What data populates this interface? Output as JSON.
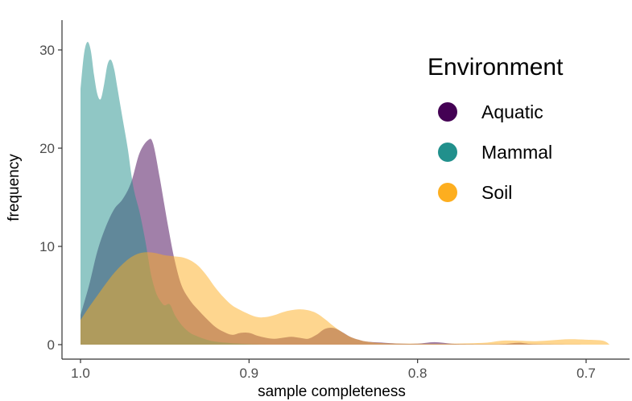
{
  "chart_data": {
    "type": "area",
    "xlabel": "sample completeness",
    "ylabel": "frequency",
    "x_reversed": true,
    "xlim": [
      1.0,
      0.685
    ],
    "ylim": [
      0,
      32
    ],
    "x_ticks": [
      1.0,
      0.9,
      0.8,
      0.7
    ],
    "x_tick_labels": [
      "1.0",
      "0.9",
      "0.8",
      "0.7"
    ],
    "y_ticks": [
      0,
      10,
      20,
      30
    ],
    "y_tick_labels": [
      "0",
      "10",
      "20",
      "30"
    ],
    "grid": false,
    "legend": {
      "title": "Environment",
      "position": "top-right",
      "entries": [
        "Aquatic",
        "Mammal",
        "Soil"
      ]
    },
    "series": [
      {
        "name": "Aquatic",
        "color": "#440154",
        "points": [
          [
            1.0,
            3.0
          ],
          [
            0.995,
            6.0
          ],
          [
            0.99,
            9.5
          ],
          [
            0.985,
            12.0
          ],
          [
            0.98,
            13.8
          ],
          [
            0.975,
            14.8
          ],
          [
            0.97,
            16.5
          ],
          [
            0.965,
            19.5
          ],
          [
            0.96,
            20.8
          ],
          [
            0.957,
            20.5
          ],
          [
            0.953,
            17.0
          ],
          [
            0.948,
            12.0
          ],
          [
            0.944,
            8.5
          ],
          [
            0.94,
            6.0
          ],
          [
            0.935,
            4.5
          ],
          [
            0.93,
            3.5
          ],
          [
            0.925,
            2.6
          ],
          [
            0.92,
            1.8
          ],
          [
            0.915,
            1.3
          ],
          [
            0.91,
            1.0
          ],
          [
            0.905,
            1.2
          ],
          [
            0.9,
            1.2
          ],
          [
            0.895,
            0.9
          ],
          [
            0.89,
            0.7
          ],
          [
            0.885,
            0.6
          ],
          [
            0.88,
            0.7
          ],
          [
            0.875,
            0.8
          ],
          [
            0.87,
            0.7
          ],
          [
            0.865,
            0.6
          ],
          [
            0.86,
            1.0
          ],
          [
            0.855,
            1.6
          ],
          [
            0.85,
            1.7
          ],
          [
            0.845,
            1.3
          ],
          [
            0.84,
            0.8
          ],
          [
            0.835,
            0.5
          ],
          [
            0.83,
            0.3
          ],
          [
            0.82,
            0.2
          ],
          [
            0.81,
            0.1
          ],
          [
            0.8,
            0.1
          ],
          [
            0.79,
            0.25
          ],
          [
            0.78,
            0.1
          ],
          [
            0.77,
            0.05
          ],
          [
            0.75,
            0.05
          ],
          [
            0.74,
            0.2
          ],
          [
            0.73,
            0.05
          ],
          [
            0.7,
            0.0
          ]
        ]
      },
      {
        "name": "Mammal",
        "color": "#21908C",
        "points": [
          [
            1.0,
            26.0
          ],
          [
            0.998,
            29.5
          ],
          [
            0.996,
            30.8
          ],
          [
            0.994,
            30.0
          ],
          [
            0.992,
            27.5
          ],
          [
            0.99,
            25.5
          ],
          [
            0.988,
            25.0
          ],
          [
            0.986,
            26.5
          ],
          [
            0.984,
            28.5
          ],
          [
            0.982,
            29.0
          ],
          [
            0.98,
            28.0
          ],
          [
            0.978,
            26.0
          ],
          [
            0.975,
            23.0
          ],
          [
            0.972,
            20.0
          ],
          [
            0.97,
            17.5
          ],
          [
            0.968,
            15.5
          ],
          [
            0.965,
            13.5
          ],
          [
            0.962,
            11.0
          ],
          [
            0.96,
            9.0
          ],
          [
            0.958,
            7.0
          ],
          [
            0.955,
            5.2
          ],
          [
            0.952,
            4.3
          ],
          [
            0.95,
            4.0
          ],
          [
            0.947,
            4.1
          ],
          [
            0.944,
            3.0
          ],
          [
            0.94,
            2.0
          ],
          [
            0.935,
            1.2
          ],
          [
            0.93,
            0.8
          ],
          [
            0.925,
            0.5
          ],
          [
            0.92,
            0.3
          ],
          [
            0.91,
            0.15
          ],
          [
            0.9,
            0.05
          ],
          [
            0.89,
            0.0
          ]
        ]
      },
      {
        "name": "Soil",
        "color": "#FDAE1F",
        "points": [
          [
            1.0,
            2.5
          ],
          [
            0.995,
            3.8
          ],
          [
            0.99,
            5.0
          ],
          [
            0.985,
            6.2
          ],
          [
            0.98,
            7.3
          ],
          [
            0.975,
            8.2
          ],
          [
            0.97,
            8.9
          ],
          [
            0.965,
            9.3
          ],
          [
            0.96,
            9.4
          ],
          [
            0.955,
            9.3
          ],
          [
            0.95,
            9.1
          ],
          [
            0.945,
            9.0
          ],
          [
            0.94,
            8.9
          ],
          [
            0.935,
            8.6
          ],
          [
            0.93,
            8.0
          ],
          [
            0.925,
            7.0
          ],
          [
            0.92,
            5.8
          ],
          [
            0.915,
            4.8
          ],
          [
            0.91,
            4.0
          ],
          [
            0.905,
            3.5
          ],
          [
            0.9,
            3.1
          ],
          [
            0.895,
            2.8
          ],
          [
            0.89,
            2.8
          ],
          [
            0.885,
            3.0
          ],
          [
            0.88,
            3.3
          ],
          [
            0.875,
            3.5
          ],
          [
            0.87,
            3.6
          ],
          [
            0.865,
            3.5
          ],
          [
            0.86,
            3.2
          ],
          [
            0.855,
            2.6
          ],
          [
            0.85,
            1.9
          ],
          [
            0.845,
            1.3
          ],
          [
            0.84,
            0.8
          ],
          [
            0.835,
            0.5
          ],
          [
            0.83,
            0.3
          ],
          [
            0.82,
            0.15
          ],
          [
            0.8,
            0.1
          ],
          [
            0.78,
            0.1
          ],
          [
            0.76,
            0.2
          ],
          [
            0.75,
            0.4
          ],
          [
            0.74,
            0.4
          ],
          [
            0.73,
            0.35
          ],
          [
            0.72,
            0.45
          ],
          [
            0.71,
            0.55
          ],
          [
            0.7,
            0.5
          ],
          [
            0.69,
            0.4
          ],
          [
            0.686,
            0.0
          ]
        ]
      }
    ]
  }
}
